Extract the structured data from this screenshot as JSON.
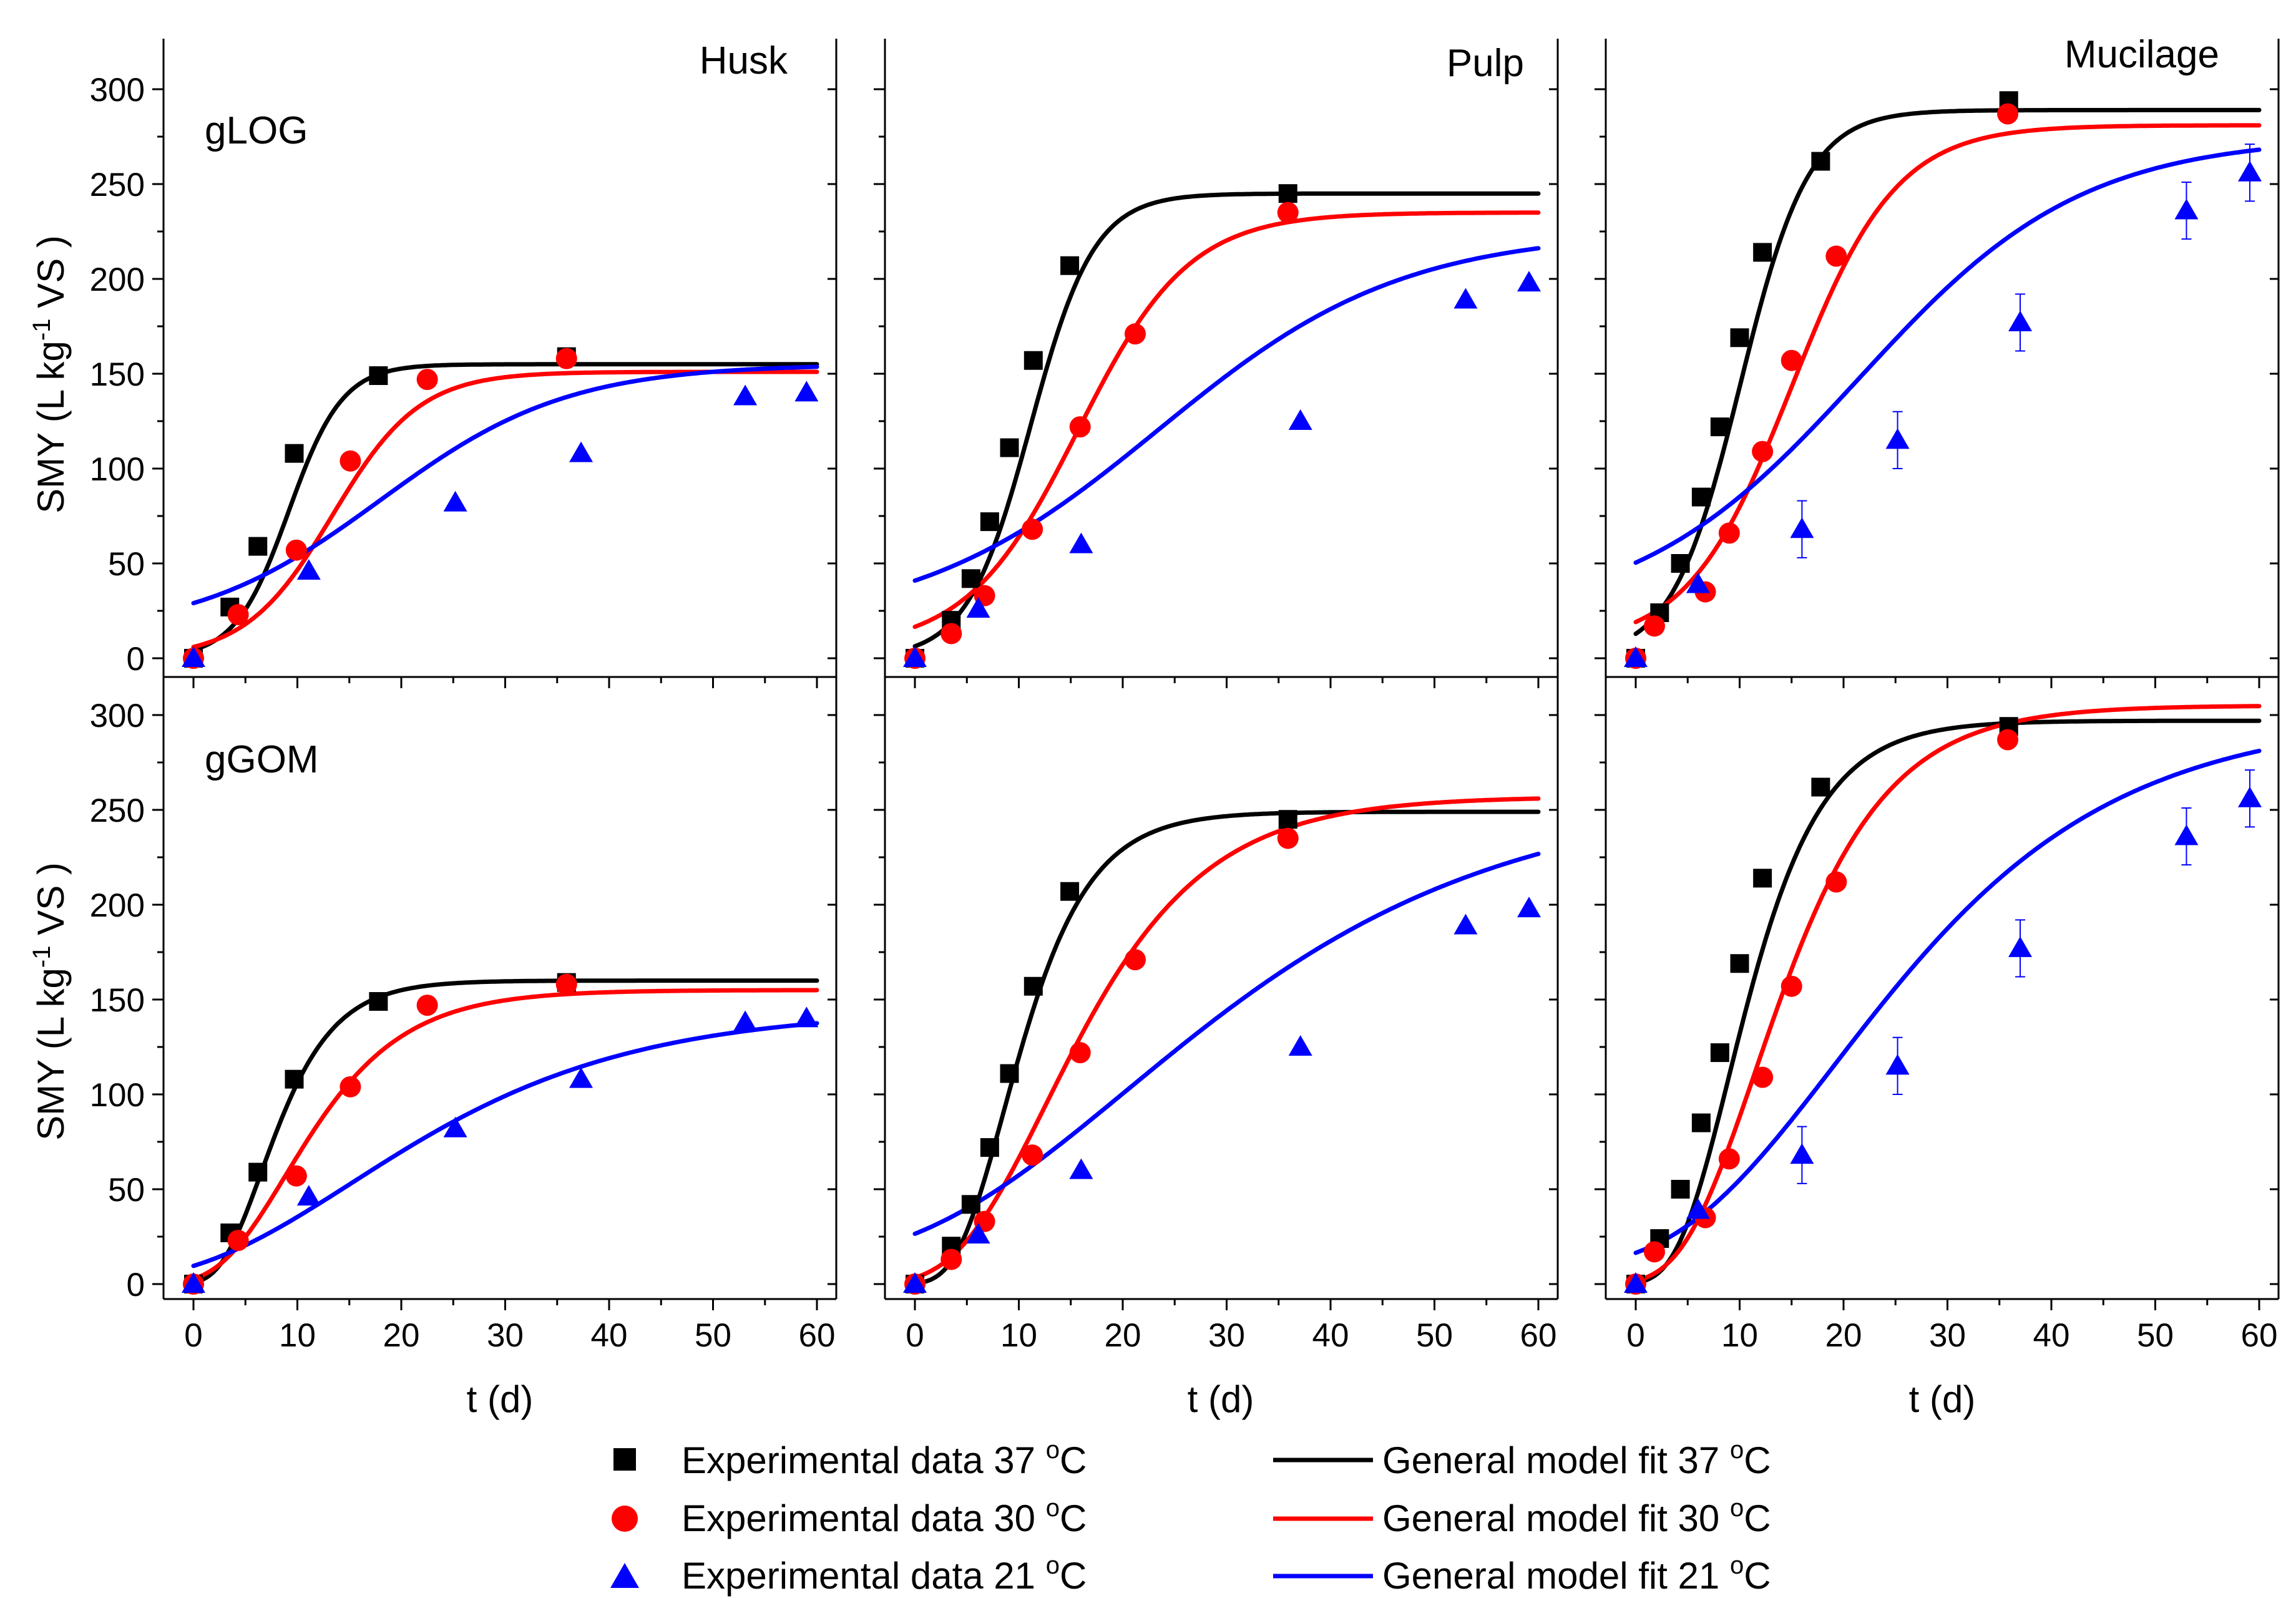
{
  "colors": {
    "t37": "#000000",
    "t30": "#ff0000",
    "t21": "#0000ff"
  },
  "legend": {
    "exp37": "Experimental data 37 ",
    "exp30": "Experimental data 30 ",
    "exp21": "Experimental data 21 ",
    "fit37": "General model fit 37 ",
    "fit30": "General model fit 30 ",
    "fit21": "General model fit 21 ",
    "unit_sup": "o",
    "unit": "C"
  },
  "axes": {
    "xlabel": "t (d)",
    "ylabel_prefix": "SMY (L kg",
    "ylabel_sup": "-1",
    "ylabel_suffix": " VS )",
    "xlim": [
      -2,
      62
    ],
    "ylim": [
      -5,
      325
    ],
    "xticks": [
      "0",
      "10",
      "20",
      "30",
      "40",
      "50",
      "60"
    ],
    "yticks": [
      "0",
      "50",
      "100",
      "150",
      "200",
      "250",
      "300"
    ]
  },
  "rows": [
    "gLOG",
    "gGOM"
  ],
  "columns": [
    "Husk",
    "Pulp",
    "Mucilage"
  ],
  "chart_data": [
    {
      "type": "scatter",
      "row": "gLOG",
      "column": "Husk",
      "model": "logistic",
      "series": [
        {
          "legend": "exp37",
          "x": [
            0,
            3.5,
            6.2,
            9.7,
            17.8,
            35.9
          ],
          "y": [
            0,
            27,
            59,
            108,
            149,
            159
          ],
          "fit": {
            "ym": 155,
            "rm": 15,
            "lambda": 4,
            "y0": 0
          }
        },
        {
          "legend": "exp30",
          "x": [
            0,
            4.3,
            9.9,
            15.1,
            22.5,
            35.9
          ],
          "y": [
            0,
            23,
            57,
            104,
            147,
            158
          ],
          "fit": {
            "ym": 151,
            "rm": 9,
            "lambda": 5,
            "y0": 0
          }
        },
        {
          "legend": "exp21",
          "x": [
            0,
            11.1,
            25.2,
            37.3,
            53.1,
            59.0
          ],
          "y": [
            0,
            46,
            82,
            108,
            138,
            140
          ],
          "fit": {
            "ym": 155,
            "rm": 4.3,
            "lambda": 0,
            "y0": 12
          }
        }
      ]
    },
    {
      "type": "scatter",
      "row": "gLOG",
      "column": "Pulp",
      "model": "logistic",
      "series": [
        {
          "legend": "exp37",
          "x": [
            0,
            3.5,
            5.4,
            7.2,
            9.1,
            11.4,
            14.9,
            35.9
          ],
          "y": [
            0,
            20,
            42,
            72,
            111,
            157,
            207,
            245
          ],
          "fit": {
            "ym": 245,
            "rm": 20,
            "lambda": 5,
            "y0": 0
          }
        },
        {
          "legend": "exp30",
          "x": [
            0,
            3.5,
            6.7,
            11.3,
            15.9,
            21.2,
            35.9
          ],
          "y": [
            0,
            13,
            33,
            68,
            122,
            171,
            235
          ],
          "fit": {
            "ym": 235,
            "rm": 11,
            "lambda": 5,
            "y0": 5
          }
        },
        {
          "legend": "exp21",
          "x": [
            0,
            6.1,
            16.0,
            37.1,
            53.0,
            59.1
          ],
          "y": [
            0,
            26,
            60,
            125,
            189,
            198
          ],
          "fit": {
            "ym": 225,
            "rm": 4.8,
            "lambda": 0,
            "y0": 16
          }
        }
      ]
    },
    {
      "type": "scatter",
      "row": "gLOG",
      "column": "Mucilage",
      "model": "logistic",
      "series": [
        {
          "legend": "exp37",
          "x": [
            0,
            2.3,
            4.3,
            6.3,
            8.1,
            10.0,
            12.2,
            17.8,
            35.9
          ],
          "y": [
            0,
            24,
            50,
            85,
            122,
            169,
            214,
            262,
            294
          ],
          "fit": {
            "ym": 289,
            "rm": 22,
            "lambda": 3.5,
            "y0": 0
          }
        },
        {
          "legend": "exp30",
          "x": [
            0,
            1.8,
            6.7,
            9.0,
            12.2,
            15.0,
            19.3,
            35.8
          ],
          "y": [
            0,
            17,
            35,
            66,
            109,
            157,
            212,
            287
          ],
          "fit": {
            "ym": 281,
            "rm": 14,
            "lambda": 5,
            "y0": 6
          }
        },
        {
          "legend": "exp21",
          "x": [
            0,
            6.0,
            16.0,
            25.2,
            37.0,
            53.0,
            59.1
          ],
          "y": [
            0,
            39,
            68,
            115,
            177,
            236,
            256
          ],
          "fit": {
            "ym": 275,
            "rm": 6.4,
            "lambda": 0,
            "y0": 20
          }
        }
      ]
    },
    {
      "type": "scatter",
      "row": "gGOM",
      "column": "Husk",
      "model": "gompertz",
      "series": [
        {
          "legend": "exp37",
          "x": [
            0,
            3.5,
            6.2,
            9.7,
            17.8,
            35.9
          ],
          "y": [
            0,
            27,
            59,
            108,
            149,
            159
          ],
          "fit": {
            "ym": 160,
            "rm": 15,
            "lambda": 2.6,
            "y0": 0
          }
        },
        {
          "legend": "exp30",
          "x": [
            0,
            4.3,
            9.9,
            15.1,
            22.5,
            35.9
          ],
          "y": [
            0,
            23,
            57,
            104,
            147,
            158
          ],
          "fit": {
            "ym": 155,
            "rm": 9,
            "lambda": 2.5,
            "y0": 0
          }
        },
        {
          "legend": "exp21",
          "x": [
            0,
            11.1,
            25.2,
            37.3,
            53.1,
            59.0
          ],
          "y": [
            0,
            46,
            82,
            108,
            138,
            140
          ],
          "fit": {
            "ym": 145,
            "rm": 3.5,
            "lambda": 0,
            "y0": 0
          }
        }
      ]
    },
    {
      "type": "scatter",
      "row": "gGOM",
      "column": "Pulp",
      "model": "gompertz",
      "series": [
        {
          "legend": "exp37",
          "x": [
            0,
            3.5,
            5.4,
            7.2,
            9.1,
            11.4,
            14.9,
            35.9
          ],
          "y": [
            0,
            20,
            42,
            72,
            111,
            157,
            207,
            245
          ],
          "fit": {
            "ym": 249,
            "rm": 20,
            "lambda": 4,
            "y0": 0
          }
        },
        {
          "legend": "exp30",
          "x": [
            0,
            3.5,
            6.7,
            11.3,
            15.9,
            21.2,
            35.9
          ],
          "y": [
            0,
            13,
            33,
            68,
            122,
            171,
            235
          ],
          "fit": {
            "ym": 257,
            "rm": 11,
            "lambda": 4,
            "y0": 0
          }
        },
        {
          "legend": "exp21",
          "x": [
            0,
            6.1,
            16.0,
            37.1,
            53.0,
            59.1
          ],
          "y": [
            0,
            26,
            60,
            125,
            189,
            198
          ],
          "fit": {
            "ym": 260,
            "rm": 4.7,
            "lambda": 0,
            "y0": 10
          }
        }
      ]
    },
    {
      "type": "scatter",
      "row": "gGOM",
      "column": "Mucilage",
      "model": "gompertz",
      "series": [
        {
          "legend": "exp37",
          "x": [
            0,
            2.3,
            4.3,
            6.3,
            8.1,
            10.0,
            12.2,
            17.8,
            35.9
          ],
          "y": [
            0,
            24,
            50,
            85,
            122,
            169,
            214,
            262,
            294
          ],
          "fit": {
            "ym": 297,
            "rm": 22,
            "lambda": 4,
            "y0": 0
          }
        },
        {
          "legend": "exp30",
          "x": [
            0,
            1.8,
            6.7,
            9.0,
            12.2,
            15.0,
            19.3,
            35.8
          ],
          "y": [
            0,
            17,
            35,
            66,
            109,
            157,
            212,
            287
          ],
          "fit": {
            "ym": 305,
            "rm": 16,
            "lambda": 4.5,
            "y0": 0
          }
        },
        {
          "legend": "exp21",
          "x": [
            0,
            6.0,
            16.0,
            25.2,
            37.0,
            53.0,
            59.1
          ],
          "y": [
            0,
            39,
            68,
            115,
            177,
            236,
            256
          ],
          "fit": {
            "ym": 300,
            "rm": 7.3,
            "lambda": 4,
            "y0": 8
          }
        }
      ]
    }
  ]
}
